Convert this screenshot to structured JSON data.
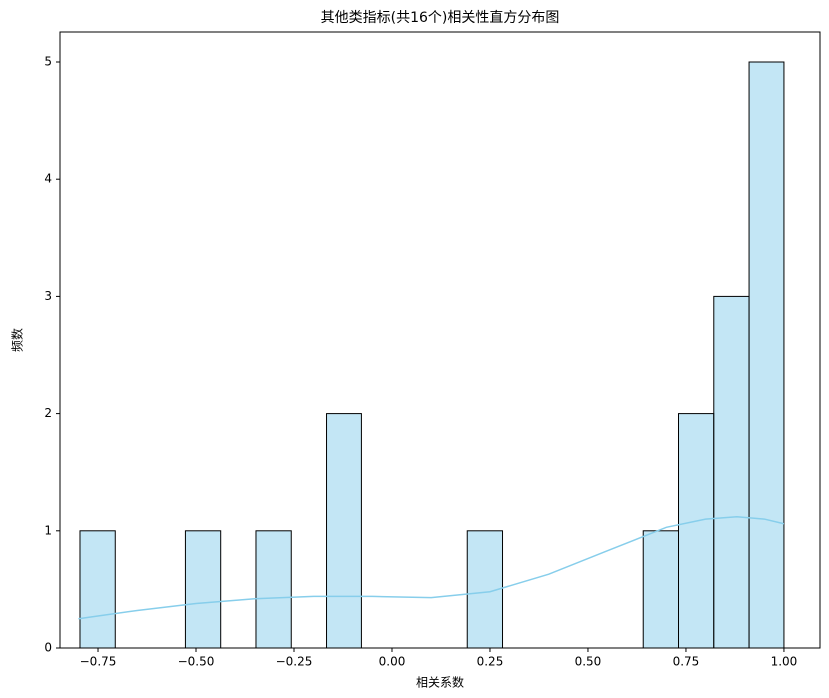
{
  "chart_data": {
    "type": "histogram",
    "title": "其他类指标(共16个)相关性直方分布图",
    "x_label": "相关系数",
    "y_label": "频数",
    "bins": [
      -0.796,
      -0.706,
      -0.616,
      -0.527,
      -0.437,
      -0.347,
      -0.257,
      -0.167,
      -0.078,
      0.012,
      0.102,
      0.192,
      0.282,
      0.372,
      0.461,
      0.551,
      0.641,
      0.731,
      0.821,
      0.911,
      1.0
    ],
    "counts": [
      1,
      0,
      0,
      1,
      0,
      1,
      0,
      2,
      0,
      0,
      0,
      1,
      0,
      0,
      0,
      0,
      1,
      2,
      3,
      5
    ],
    "color": "#87ceeb",
    "kde": {
      "x": [
        -0.8,
        -0.65,
        -0.5,
        -0.35,
        -0.2,
        -0.05,
        0.1,
        0.25,
        0.4,
        0.55,
        0.7,
        0.8,
        0.88,
        0.95,
        1.0
      ],
      "y": [
        0.25,
        0.32,
        0.38,
        0.42,
        0.44,
        0.44,
        0.43,
        0.48,
        0.63,
        0.83,
        1.03,
        1.1,
        1.12,
        1.1,
        1.06
      ]
    },
    "xlim": [
      -0.847,
      1.092
    ],
    "ylim": [
      0,
      5.256
    ],
    "xticks": [
      {
        "value": -0.75,
        "label": "−0.75"
      },
      {
        "value": -0.5,
        "label": "−0.50"
      },
      {
        "value": -0.25,
        "label": "−0.25"
      },
      {
        "value": 0,
        "label": "0.00"
      },
      {
        "value": 0.25,
        "label": "0.25"
      },
      {
        "value": 0.5,
        "label": "0.50"
      },
      {
        "value": 0.75,
        "label": "0.75"
      },
      {
        "value": 1,
        "label": "1.00"
      }
    ],
    "yticks": [
      0,
      1,
      2,
      3,
      4,
      5
    ]
  }
}
